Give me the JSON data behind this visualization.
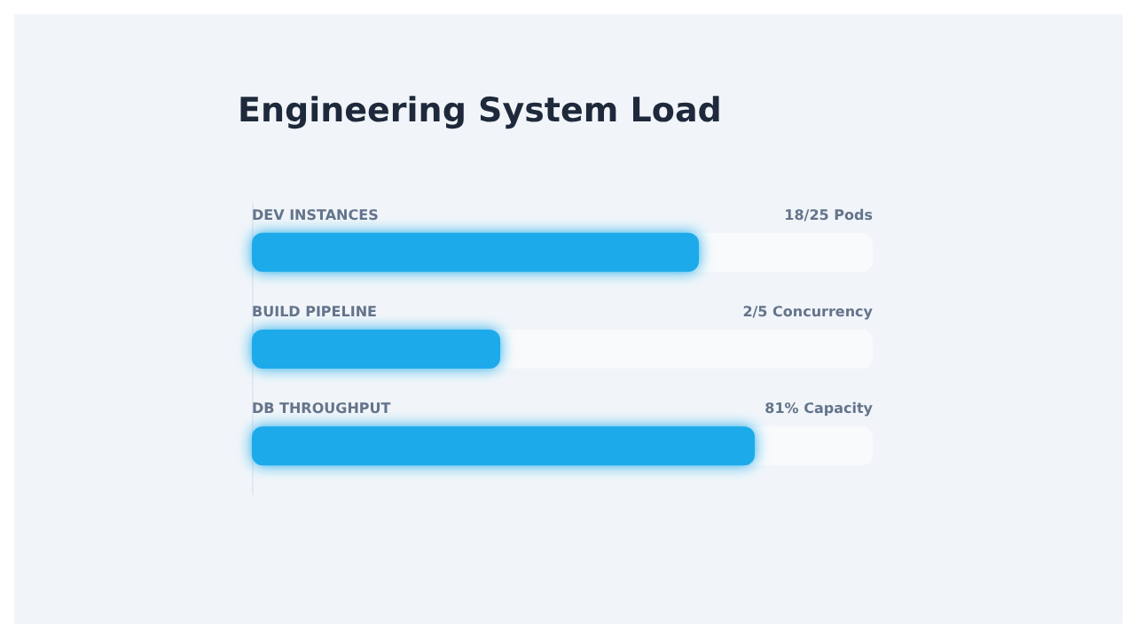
{
  "chart_data": {
    "type": "bar",
    "orientation": "horizontal",
    "title": "Engineering System Load",
    "categories": [
      "DEV INSTANCES",
      "BUILD PIPELINE",
      "DB THROUGHPUT"
    ],
    "values": [
      72,
      40,
      81
    ],
    "value_labels": [
      "18/25 Pods",
      "2/5 Concurrency",
      "81% Capacity"
    ],
    "color": "#1eaaea",
    "xlim": [
      0,
      100
    ]
  }
}
